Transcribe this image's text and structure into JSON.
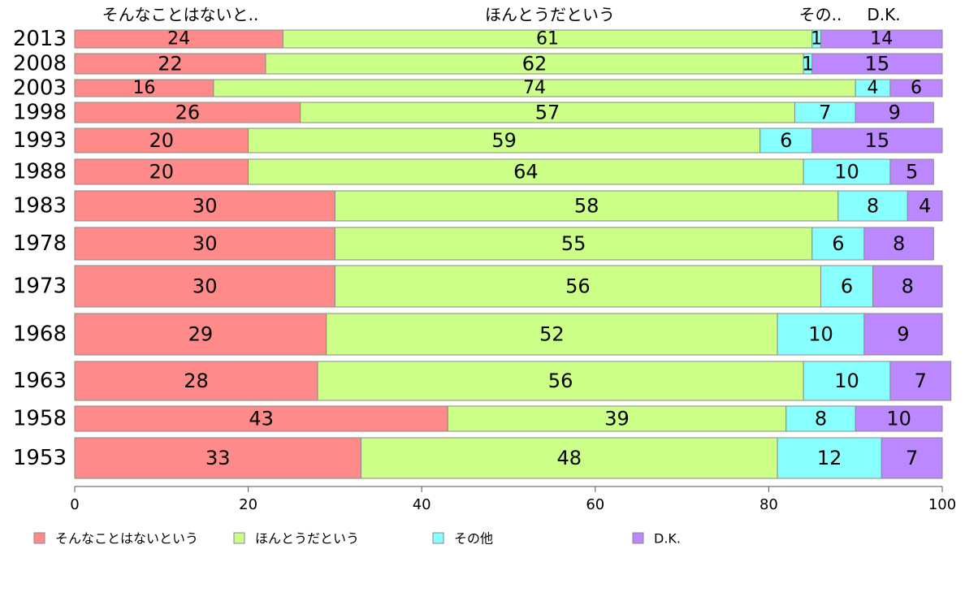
{
  "chart_data": {
    "type": "bar",
    "orientation": "horizontal",
    "stacked": true,
    "categories": [
      "2013",
      "2008",
      "2003",
      "1998",
      "1993",
      "1988",
      "1983",
      "1978",
      "1973",
      "1968",
      "1963",
      "1958",
      "1953"
    ],
    "series": [
      {
        "name": "そんなことはないという",
        "values": [
          24,
          22,
          16,
          26,
          20,
          20,
          30,
          30,
          30,
          29,
          28,
          43,
          33
        ]
      },
      {
        "name": "ほんとうだという",
        "values": [
          61,
          62,
          74,
          57,
          59,
          64,
          58,
          55,
          56,
          52,
          56,
          39,
          48
        ]
      },
      {
        "name": "その他",
        "values": [
          1,
          1,
          4,
          7,
          6,
          10,
          8,
          6,
          6,
          10,
          10,
          8,
          12
        ]
      },
      {
        "name": "D.K.",
        "values": [
          14,
          15,
          6,
          9,
          15,
          5,
          4,
          8,
          8,
          9,
          7,
          10,
          7
        ]
      }
    ],
    "top_labels": [
      "そんなことはないと..",
      "ほんとうだという",
      "その..",
      "D.K."
    ],
    "x_ticks": [
      0,
      20,
      40,
      60,
      80,
      100
    ],
    "xlim": [
      0,
      100
    ],
    "grid": false,
    "legend_position": "bottom"
  },
  "colors": {
    "series": [
      "#ff8a8a",
      "#ccff88",
      "#88ffff",
      "#bb88ff"
    ],
    "bar_stroke": "#888888",
    "text": "#000000",
    "axis": "#555555"
  }
}
